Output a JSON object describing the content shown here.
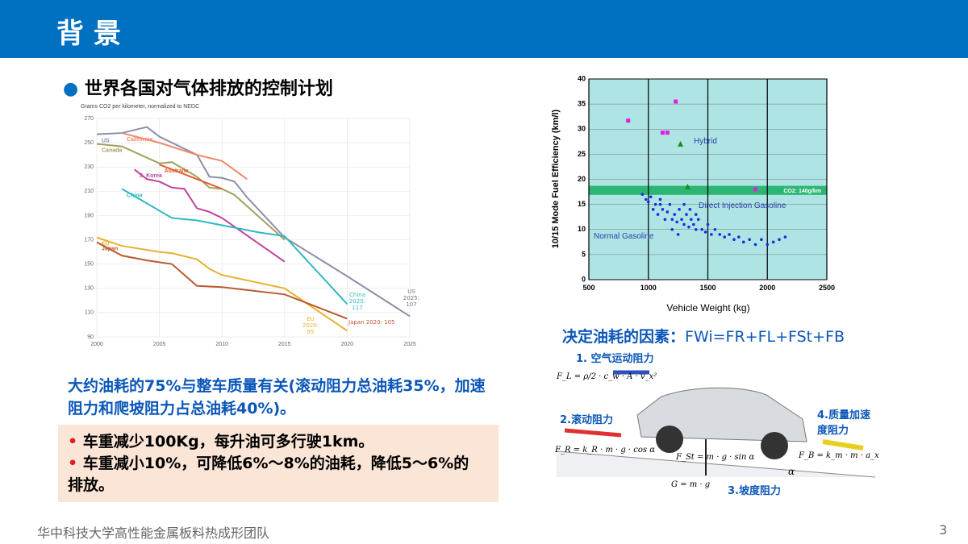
{
  "header": {
    "title": "背 景"
  },
  "bullet": "世界各国对气体排放的控制计划",
  "summary": "大约油耗的75%与整车质量有关(滚动阻力总油耗35%，加速阻力和爬坡阻力占总油耗40%)。",
  "box": {
    "items": [
      "车重减少100Kg，每升油可多行驶1km。",
      "车重减小10%，可降低6%～8%的油耗，降低5～6%的排放。"
    ]
  },
  "factors": {
    "title": "决定油耗的因素：",
    "formula": "FWi=FR+FL+FSt+FB",
    "labels": [
      "1. 空气运动阻力",
      "2.滚动阻力",
      "3.坡度阻力",
      "4.质量加速度阻力"
    ],
    "equations": [
      "F_L = ρ/2 · c_w · A · v_x²",
      "F_R = k_R · m · g · cos α",
      "F_St = m · g · sin α",
      "G = m · g",
      "F_B = k_m · m · a_x",
      "α"
    ]
  },
  "footer": {
    "text": "华中科技大学高性能金属板料热成形团队",
    "page": "3"
  },
  "chart_data": [
    {
      "type": "line",
      "title": "Grams CO2 per kilometer, normalized to NEDC",
      "xlim": [
        2000,
        2025
      ],
      "xticks": [
        2000,
        2005,
        2010,
        2015,
        2020,
        2025
      ],
      "ylim": [
        90,
        270
      ],
      "yticks": [
        90,
        110,
        130,
        150,
        170,
        190,
        210,
        230,
        250,
        270
      ],
      "grid": true,
      "series": [
        {
          "name": "US",
          "color": "#8a90a8",
          "x": [
            2000,
            2002,
            2004,
            2005,
            2008,
            2009,
            2010,
            2011,
            2012,
            2015,
            2020,
            2025
          ],
          "values": [
            257,
            258,
            263,
            255,
            240,
            222,
            221,
            218,
            205,
            172,
            140,
            107
          ]
        },
        {
          "name": "California",
          "color": "#f0896c",
          "x": [
            2002,
            2005,
            2008,
            2010,
            2012
          ],
          "values": [
            258,
            250,
            240,
            235,
            220
          ]
        },
        {
          "name": "Canada",
          "color": "#a3a060",
          "x": [
            2000,
            2002,
            2005,
            2006,
            2008,
            2009,
            2010,
            2011,
            2015
          ],
          "values": [
            249,
            247,
            233,
            234,
            222,
            213,
            212,
            207,
            170
          ]
        },
        {
          "name": "S. Korea",
          "color": "#c040a0",
          "x": [
            2003,
            2004,
            2005,
            2006,
            2007,
            2008,
            2009,
            2010,
            2015
          ],
          "values": [
            228,
            220,
            218,
            213,
            212,
            196,
            193,
            188,
            152
          ]
        },
        {
          "name": "Australia",
          "color": "#e06030",
          "x": [
            2005,
            2008,
            2010
          ],
          "values": [
            232,
            220,
            212
          ]
        },
        {
          "name": "China",
          "color": "#30b8c0",
          "x": [
            2002,
            2004,
            2006,
            2008,
            2010,
            2013,
            2015,
            2020
          ],
          "values": [
            212,
            200,
            188,
            186,
            182,
            176,
            173,
            117
          ]
        },
        {
          "name": "EU",
          "color": "#e8b030",
          "x": [
            2000,
            2002,
            2005,
            2006,
            2008,
            2009,
            2010,
            2015,
            2020
          ],
          "values": [
            172,
            165,
            160,
            159,
            154,
            146,
            141,
            130,
            95
          ]
        },
        {
          "name": "Japan",
          "color": "#b85a30",
          "x": [
            2000,
            2002,
            2004,
            2006,
            2008,
            2010,
            2015,
            2020
          ],
          "values": [
            168,
            157,
            153,
            150,
            132,
            131,
            125,
            105
          ]
        }
      ],
      "annotations": [
        "US 2025: 107",
        "China 2020: 117",
        "EU 2020: 95",
        "Japan 2020: 105"
      ]
    },
    {
      "type": "scatter",
      "x_label": "Vehicle Weight (kg)",
      "y_label": "10/15 Mode Fuel Efficiency (km/l)",
      "xlim": [
        500,
        2500
      ],
      "xticks": [
        500,
        1000,
        1500,
        2000,
        2500
      ],
      "ylim": [
        0,
        40
      ],
      "yticks": [
        0,
        5,
        10,
        15,
        20,
        25,
        30,
        35,
        40
      ],
      "grid": true,
      "band": {
        "label": "CO2: 140g/km",
        "range": [
          16.9,
          18.7
        ],
        "color": "#2bb673"
      },
      "series": [
        {
          "name": "Hybrid",
          "color": "#e020e0",
          "x": [
            830,
            1120,
            1160,
            1230,
            1900
          ],
          "values": [
            31.7,
            29.3,
            29.3,
            35.5,
            18
          ]
        },
        {
          "name": "Direct Injection Gasoline",
          "color": "#228822",
          "x": [
            1270,
            1330
          ],
          "values": [
            27,
            18.5
          ]
        },
        {
          "name": "Normal Gasoline",
          "color": "#1a2ee0",
          "x": [
            950,
            980,
            1000,
            1020,
            1040,
            1060,
            1080,
            1100,
            1120,
            1140,
            1160,
            1180,
            1200,
            1220,
            1240,
            1260,
            1280,
            1300,
            1320,
            1340,
            1360,
            1380,
            1400,
            1420,
            1450,
            1480,
            1500,
            1530,
            1560,
            1600,
            1640,
            1680,
            1720,
            1760,
            1800,
            1850,
            1900,
            1950,
            2000,
            2050,
            2100,
            2150,
            1100,
            1200,
            1300,
            1400,
            1250,
            1350
          ],
          "values": [
            17,
            16,
            15.5,
            16.5,
            14,
            15,
            13,
            15,
            14,
            12,
            13.5,
            15,
            12,
            13,
            11.5,
            14,
            12,
            11,
            13,
            10.5,
            12,
            11,
            10,
            12,
            10,
            9.5,
            11,
            9,
            10,
            9,
            8.5,
            9,
            8,
            8.5,
            7.5,
            8,
            7,
            8,
            7,
            7.5,
            8,
            8.5,
            16,
            10,
            15,
            13,
            9,
            14
          ]
        }
      ]
    }
  ]
}
